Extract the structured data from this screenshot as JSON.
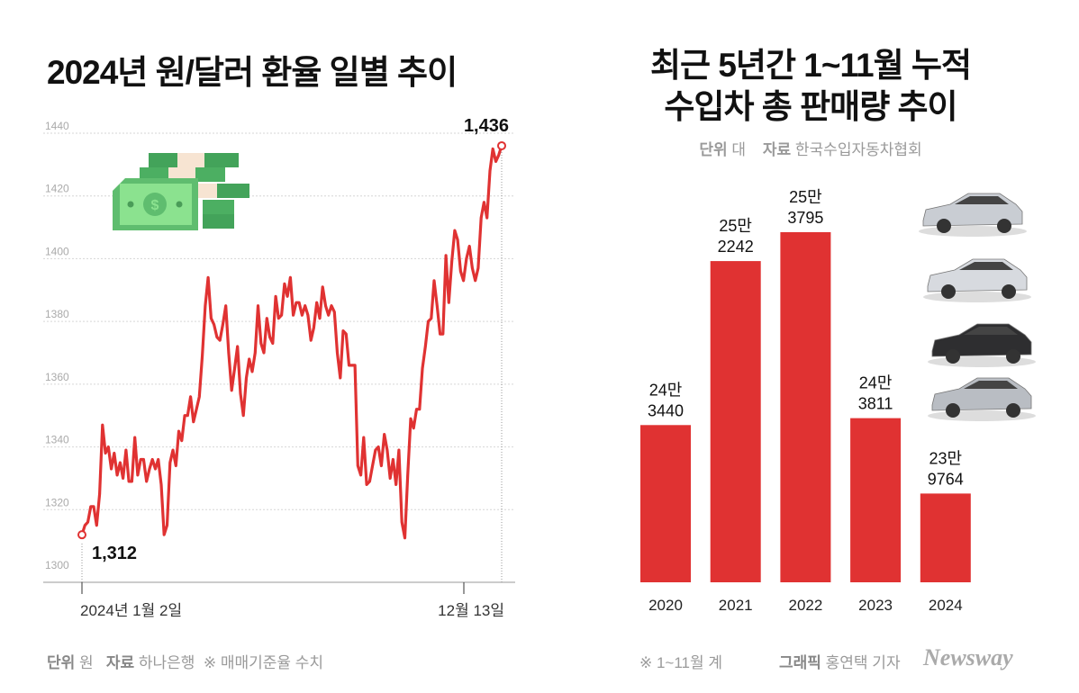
{
  "colors": {
    "line": "#e03232",
    "bar": "#e03232",
    "grid": "#d0d0d0",
    "muted": "#9a9a9a"
  },
  "left": {
    "title": "2024년 원/달러 환율 일별 추이",
    "footer": {
      "unit_label": "단위",
      "unit": "원",
      "source_label": "자료",
      "source": "하나은행",
      "note": "※ 매매기준율 수치"
    },
    "icon": "money-stack-icon"
  },
  "right": {
    "title_line1": "최근 5년간 1~11월 누적",
    "title_line2": "수입차 총 판매량 추이",
    "unit_label": "단위",
    "unit": "대",
    "source_label": "자료",
    "source": "한국수입자동차협회",
    "footer": {
      "note": "※ 1~11월 계",
      "graphic_label": "그래픽",
      "graphic": "홍연택 기자",
      "logo": "Newsway"
    },
    "images": [
      "sedan-car-icon",
      "suv-car-icon",
      "sedan-car-icon",
      "sedan-car-icon"
    ]
  },
  "chart_data": [
    {
      "type": "line",
      "title": "2024년 원/달러 환율 일별 추이",
      "ylim": [
        1300,
        1440
      ],
      "yticks": [
        "1300",
        "1320",
        "1340",
        "1360",
        "1380",
        "1400",
        "1420",
        "1440"
      ],
      "xtick_labels": [
        "2024년 1월 2일",
        "12월 13일"
      ],
      "grid": true,
      "annotations": {
        "start": "1,312",
        "end": "1,436"
      },
      "values": [
        1312,
        1315,
        1316,
        1321,
        1321,
        1315,
        1325,
        1347,
        1338,
        1340,
        1333,
        1338,
        1331,
        1335,
        1330,
        1339,
        1329,
        1329,
        1343,
        1331,
        1336,
        1336,
        1329,
        1333,
        1336,
        1333,
        1336,
        1328,
        1312,
        1315,
        1335,
        1339,
        1334,
        1345,
        1342,
        1350,
        1350,
        1356,
        1348,
        1352,
        1356,
        1369,
        1385,
        1394,
        1381,
        1379,
        1375,
        1374,
        1379,
        1385,
        1370,
        1358,
        1365,
        1372,
        1357,
        1350,
        1362,
        1368,
        1364,
        1370,
        1385,
        1373,
        1370,
        1381,
        1375,
        1373,
        1388,
        1381,
        1382,
        1392,
        1388,
        1394,
        1382,
        1386,
        1386,
        1382,
        1385,
        1382,
        1374,
        1378,
        1386,
        1381,
        1391,
        1385,
        1382,
        1385,
        1383,
        1370,
        1362,
        1377,
        1376,
        1366,
        1366,
        1366,
        1334,
        1331,
        1343,
        1328,
        1329,
        1334,
        1339,
        1340,
        1334,
        1344,
        1339,
        1330,
        1336,
        1328,
        1339,
        1316,
        1311,
        1331,
        1349,
        1346,
        1352,
        1352,
        1365,
        1372,
        1380,
        1381,
        1393,
        1385,
        1376,
        1376,
        1401,
        1386,
        1399,
        1409,
        1406,
        1396,
        1393,
        1400,
        1404,
        1397,
        1393,
        1397,
        1413,
        1418,
        1413,
        1428,
        1435,
        1431,
        1433,
        1436
      ]
    },
    {
      "type": "bar",
      "title": "최근 5년간 1~11월 누적 수입차 총 판매량 추이",
      "categories": [
        "2020",
        "2021",
        "2022",
        "2023",
        "2024"
      ],
      "values": [
        243440,
        252242,
        253795,
        243811,
        239764
      ],
      "labels": [
        [
          "24만",
          "3440"
        ],
        [
          "25만",
          "2242"
        ],
        [
          "25만",
          "3795"
        ],
        [
          "24만",
          "3811"
        ],
        [
          "23만",
          "9764"
        ]
      ],
      "ylabel": "대"
    }
  ]
}
